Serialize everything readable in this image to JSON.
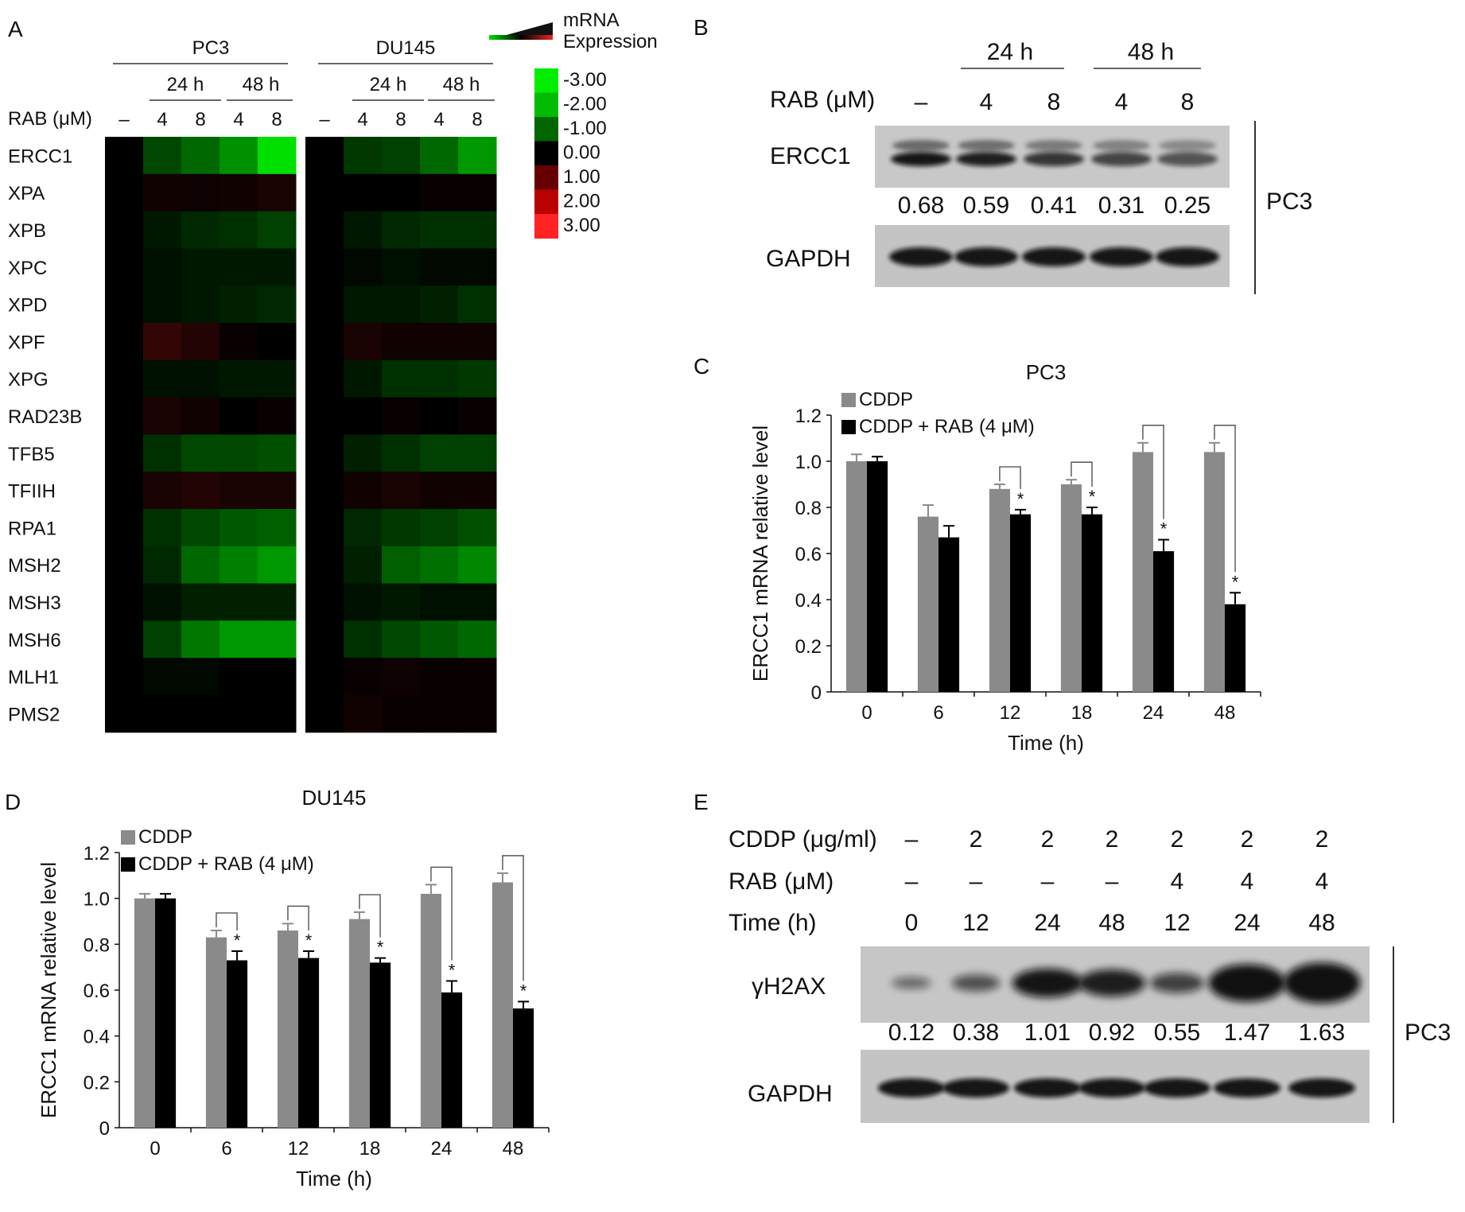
{
  "panels": {
    "A": {
      "label": "A",
      "cell_lines": [
        "PC3",
        "DU145"
      ],
      "times": [
        "24 h",
        "48 h"
      ],
      "treatment_label": "RAB (μM)",
      "doses": [
        "–",
        "4",
        "8",
        "4",
        "8"
      ],
      "legend": {
        "title_line1": "mRNA",
        "title_line2": "Expression",
        "ticks": [
          "-3.00",
          "-2.00",
          "-1.00",
          "0.00",
          "1.00",
          "2.00",
          "3.00"
        ],
        "colors": [
          "#00ee00",
          "#00bb00",
          "#006600",
          "#000000",
          "#660000",
          "#bb0000",
          "#ff2222"
        ]
      },
      "chart_data": {
        "type": "heatmap",
        "genes": [
          "ERCC1",
          "XPA",
          "XPB",
          "XPC",
          "XPD",
          "XPF",
          "XPG",
          "RAD23B",
          "TFB5",
          "TFIIH",
          "RPA1",
          "MSH2",
          "MSH3",
          "MSH6",
          "MLH1",
          "PMS2"
        ],
        "columns": [
          "–",
          "4 (24 h)",
          "8 (24 h)",
          "4 (48 h)",
          "8 (48 h)"
        ],
        "PC3": [
          [
            0,
            -0.9,
            -1.3,
            -1.8,
            -2.8
          ],
          [
            0,
            0.2,
            0.15,
            0.2,
            0.3
          ],
          [
            0,
            -0.3,
            -0.5,
            -0.6,
            -0.8
          ],
          [
            0,
            -0.2,
            -0.3,
            -0.3,
            -0.3
          ],
          [
            0,
            -0.2,
            -0.3,
            -0.4,
            -0.5
          ],
          [
            0,
            0.6,
            0.4,
            0.1,
            0
          ],
          [
            0,
            -0.2,
            -0.2,
            -0.3,
            -0.3
          ],
          [
            0,
            0.3,
            0.2,
            0,
            0.1
          ],
          [
            0,
            -0.6,
            -0.9,
            -0.9,
            -1.0
          ],
          [
            0,
            0.3,
            0.4,
            0.3,
            0.3
          ],
          [
            0,
            -0.6,
            -0.9,
            -1.1,
            -1.2
          ],
          [
            0,
            -0.5,
            -1.3,
            -1.6,
            -1.9
          ],
          [
            0,
            -0.2,
            -0.4,
            -0.4,
            -0.4
          ],
          [
            0,
            -0.8,
            -1.5,
            -1.9,
            -1.9
          ],
          [
            0,
            -0.1,
            -0.1,
            0,
            0
          ],
          [
            0,
            0,
            0,
            0,
            0
          ]
        ],
        "DU145": [
          [
            0,
            -0.7,
            -0.8,
            -1.3,
            -1.9
          ],
          [
            0,
            0,
            0,
            0.1,
            0.1
          ],
          [
            0,
            -0.3,
            -0.5,
            -0.6,
            -0.6
          ],
          [
            0,
            -0.1,
            -0.2,
            -0.1,
            -0.1
          ],
          [
            0,
            -0.3,
            -0.3,
            -0.4,
            -0.6
          ],
          [
            0,
            0.3,
            0.2,
            0.2,
            0.2
          ],
          [
            0,
            -0.3,
            -0.6,
            -0.6,
            -0.7
          ],
          [
            0,
            0,
            0.1,
            0,
            0.1
          ],
          [
            0,
            -0.4,
            -0.6,
            -0.8,
            -0.8
          ],
          [
            0,
            0.2,
            0.3,
            0.2,
            0.2
          ],
          [
            0,
            -0.5,
            -0.7,
            -0.8,
            -1.0
          ],
          [
            0,
            -0.4,
            -1.2,
            -1.4,
            -1.7
          ],
          [
            0,
            -0.2,
            -0.3,
            -0.2,
            -0.2
          ],
          [
            0,
            -0.6,
            -0.9,
            -1.1,
            -1.3
          ],
          [
            0,
            0.1,
            0.15,
            0.1,
            0.1
          ],
          [
            0,
            0.2,
            0.1,
            0.1,
            0.1
          ]
        ]
      }
    },
    "B": {
      "label": "B",
      "times": [
        "24 h",
        "48 h"
      ],
      "treatment_label": "RAB (μM)",
      "doses": [
        "–",
        "4",
        "8",
        "4",
        "8"
      ],
      "protein": "ERCC1",
      "control": "GAPDH",
      "quant": [
        "0.68",
        "0.59",
        "0.41",
        "0.31",
        "0.25"
      ],
      "cell_line": "PC3"
    },
    "C": {
      "label": "C",
      "chart_data": {
        "type": "bar",
        "title": "PC3",
        "categories": [
          "0",
          "6",
          "12",
          "18",
          "24",
          "48"
        ],
        "series": [
          {
            "name": "CDDP",
            "values": [
              1.0,
              0.76,
              0.88,
              0.9,
              1.04,
              1.04
            ],
            "errors": [
              0.03,
              0.05,
              0.02,
              0.02,
              0.04,
              0.04
            ]
          },
          {
            "name": "CDDP + RAB (4 μM)",
            "values": [
              1.0,
              0.67,
              0.77,
              0.77,
              0.61,
              0.38
            ],
            "errors": [
              0.02,
              0.05,
              0.02,
              0.03,
              0.05,
              0.05
            ]
          }
        ],
        "significant": [
          false,
          false,
          true,
          true,
          true,
          true
        ],
        "marker": "*",
        "xlabel": "Time (h)",
        "ylabel": "ERCC1 mRNA relative level",
        "ylim": [
          0,
          1.2
        ],
        "yticks": [
          "0",
          "0.2",
          "0.4",
          "0.6",
          "0.8",
          "1.0",
          "1.2"
        ],
        "legend": "top-left"
      }
    },
    "D": {
      "label": "D",
      "chart_data": {
        "type": "bar",
        "title": "DU145",
        "categories": [
          "0",
          "6",
          "12",
          "18",
          "24",
          "48"
        ],
        "series": [
          {
            "name": "CDDP",
            "values": [
              1.0,
              0.83,
              0.86,
              0.91,
              1.02,
              1.07
            ],
            "errors": [
              0.02,
              0.03,
              0.03,
              0.03,
              0.04,
              0.04
            ]
          },
          {
            "name": "CDDP + RAB (4 μM)",
            "values": [
              1.0,
              0.73,
              0.74,
              0.72,
              0.59,
              0.52
            ],
            "errors": [
              0.02,
              0.04,
              0.03,
              0.02,
              0.05,
              0.03
            ]
          }
        ],
        "significant": [
          false,
          true,
          true,
          true,
          true,
          true
        ],
        "marker": "*",
        "xlabel": "Time (h)",
        "ylabel": "ERCC1 mRNA relative level",
        "ylim": [
          0,
          1.2
        ],
        "yticks": [
          "0",
          "0.2",
          "0.4",
          "0.6",
          "0.8",
          "1.0",
          "1.2"
        ],
        "legend": "top-left"
      }
    },
    "E": {
      "label": "E",
      "rows": [
        {
          "label": "CDDP (μg/ml)",
          "values": [
            "–",
            "2",
            "2",
            "2",
            "2",
            "2",
            "2"
          ]
        },
        {
          "label": "RAB (μM)",
          "values": [
            "–",
            "–",
            "–",
            "–",
            "4",
            "4",
            "4"
          ]
        },
        {
          "label": "Time (h)",
          "values": [
            "0",
            "12",
            "24",
            "48",
            "12",
            "24",
            "48"
          ]
        }
      ],
      "protein": "γH2AX",
      "control": "GAPDH",
      "quant": [
        "0.12",
        "0.38",
        "1.01",
        "0.92",
        "0.55",
        "1.47",
        "1.63"
      ],
      "cell_line": "PC3"
    }
  }
}
